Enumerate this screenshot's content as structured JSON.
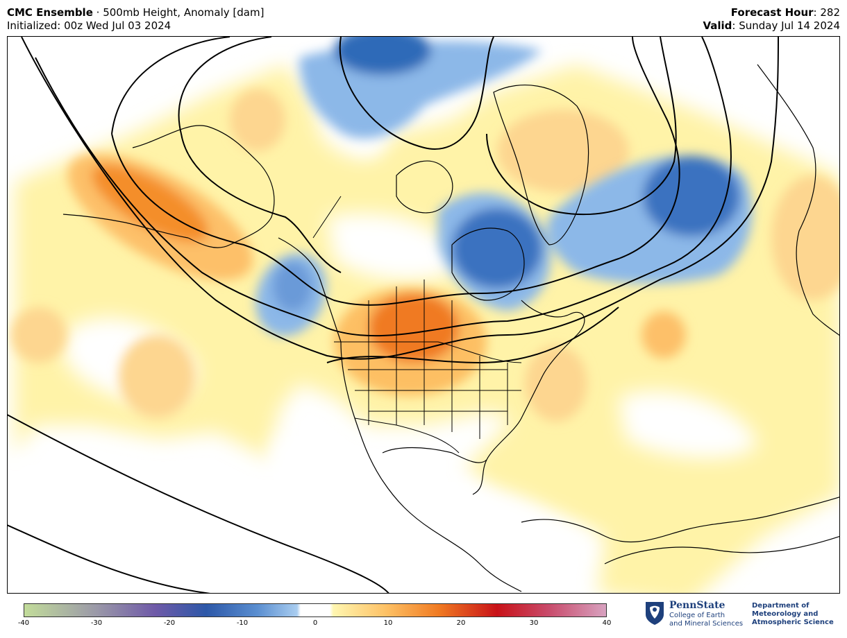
{
  "header": {
    "model": "CMC Ensemble",
    "separator": " · ",
    "product": "500mb Height, Anomaly [dam]",
    "initialized": "Initialized: 00z Wed Jul 03 2024",
    "forecast_hour_label": "Forecast Hour",
    "forecast_hour_value": ": 282",
    "valid_label": "Valid",
    "valid_value": ": Sunday Jul 14 2024"
  },
  "colorbar": {
    "min": -40,
    "max": 40,
    "ticks": [
      "-40",
      "-30",
      "-20",
      "-10",
      "0",
      "10",
      "20",
      "30",
      "40"
    ],
    "colors": {
      "neg40": "#c2dc9a",
      "neg30": "#9a98a8",
      "neg22": "#6f5aa8",
      "neg15": "#2d58a8",
      "neg8": "#5a8ed0",
      "neg3": "#a9cdf0",
      "zero": "#ffffff",
      "pos3": "#fff6b0",
      "pos10": "#fdbf63",
      "pos17": "#f07a22",
      "pos25": "#c81218",
      "pos32": "#c84a6a",
      "pos40": "#d8a2c0"
    }
  },
  "logo": {
    "name": "PennState",
    "college_line1": "College of Earth",
    "college_line2": "and Mineral Sciences",
    "dept_line1": "Department of",
    "dept_line2": "Meteorology and",
    "dept_line3": "Atmospheric Science"
  }
}
